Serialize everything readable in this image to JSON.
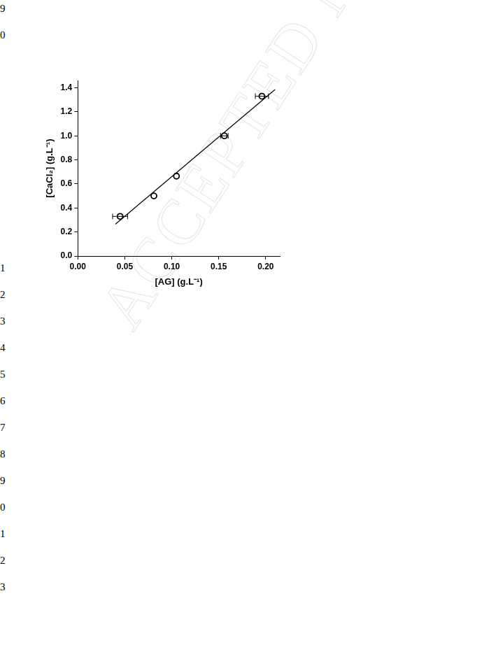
{
  "page": {
    "line_numbers": [
      "9",
      "0",
      "1",
      "2",
      "3",
      "4",
      "5",
      "6",
      "7",
      "8",
      "9",
      "0",
      "1",
      "2",
      "3"
    ],
    "watermark": "ACCEPTED MANUSCRIPT"
  },
  "chart_data": {
    "type": "scatter",
    "x_label": "[AG] (g.L⁻¹)",
    "y_label": "[CaCl₂] (g.L⁻¹)",
    "xlim": [
      0,
      0.215
    ],
    "ylim": [
      0,
      1.46
    ],
    "xticks": [
      {
        "value": 0,
        "label": "0.00"
      },
      {
        "value": 0.05,
        "label": "0.05"
      },
      {
        "value": 0.1,
        "label": "0.10"
      },
      {
        "value": 0.15,
        "label": "0.15"
      },
      {
        "value": 0.2,
        "label": "0.20"
      }
    ],
    "yticks": [
      {
        "value": 0,
        "label": "0.0"
      },
      {
        "value": 0.2,
        "label": "0.2"
      },
      {
        "value": 0.4,
        "label": "0.4"
      },
      {
        "value": 0.6,
        "label": "0.6"
      },
      {
        "value": 0.8,
        "label": "0.8"
      },
      {
        "value": 1.0,
        "label": "1.0"
      },
      {
        "value": 1.2,
        "label": "1.2"
      },
      {
        "value": 1.4,
        "label": "1.4"
      }
    ],
    "grid": false,
    "series": [
      {
        "type": "scatter",
        "marker": "circle",
        "color": "#000000",
        "x": [
          0.045,
          0.081,
          0.105,
          0.156,
          0.196
        ],
        "values": [
          0.33,
          0.5,
          0.665,
          1.0,
          1.33
        ],
        "x_error": [
          0.008,
          0,
          0,
          0.004,
          0.007
        ]
      },
      {
        "type": "line",
        "line_style": "solid",
        "color": "#000000",
        "x": [
          0.04,
          0.21
        ],
        "values": [
          0.265,
          1.385
        ]
      }
    ]
  }
}
